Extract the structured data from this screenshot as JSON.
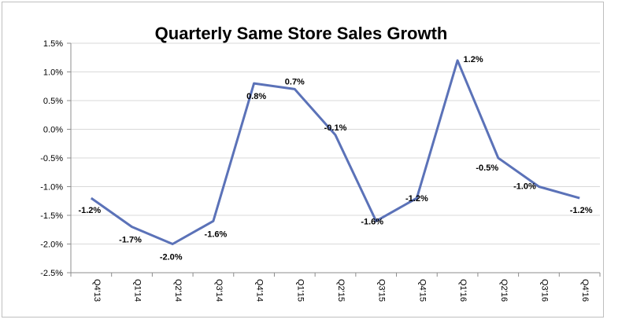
{
  "chart_data": {
    "type": "line",
    "title": "Quarterly Same Store Sales Growth",
    "xlabel": "",
    "ylabel": "",
    "categories": [
      "Q4'13",
      "Q1'14",
      "Q2'14",
      "Q3'14",
      "Q4'14",
      "Q1'15",
      "Q2'15",
      "Q3'15",
      "Q4'15",
      "Q1'16",
      "Q2'16",
      "Q3'16",
      "Q4'16"
    ],
    "series": [
      {
        "values": [
          -1.2,
          -1.7,
          -2.0,
          -1.6,
          0.8,
          0.7,
          -0.1,
          -1.6,
          -1.2,
          1.2,
          -0.5,
          -1.0,
          -1.2
        ],
        "labels": [
          "-1.2%",
          "-1.7%",
          "-2.0%",
          "-1.6%",
          "0.8%",
          "0.7%",
          "-0.1%",
          "-1.6%",
          "-1.2%",
          "1.2%",
          "-0.5%",
          "-1.0%",
          "-1.2%"
        ],
        "color": "#5b72b8"
      }
    ],
    "ylim": [
      -2.5,
      1.5
    ],
    "yticks": [
      1.5,
      1.0,
      0.5,
      0.0,
      -0.5,
      -1.0,
      -1.5,
      -2.0,
      -2.5
    ],
    "ytick_labels": [
      "1.5%",
      "1.0%",
      "0.5%",
      "0.0%",
      "-0.5%",
      "-1.0%",
      "-1.5%",
      "-2.0%",
      "-2.5%"
    ],
    "grid": true,
    "legend": "none",
    "gridline_color": "#d9d9d9",
    "axis_color": "#8c8c8c"
  }
}
